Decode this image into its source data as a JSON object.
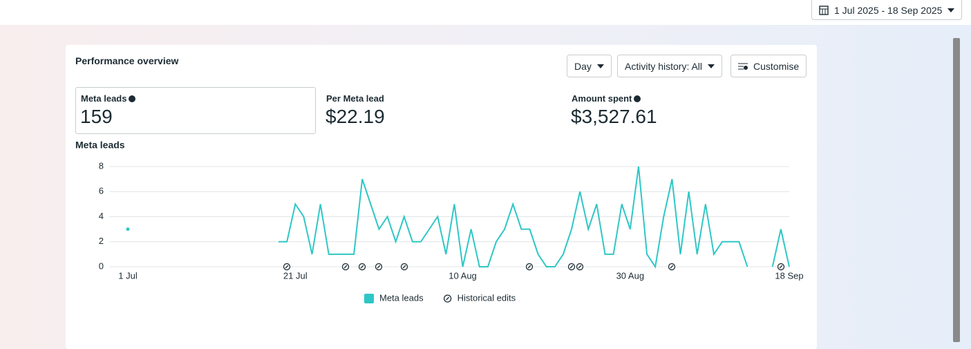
{
  "header": {
    "date_range": "1 Jul 2025 - 18 Sep 2025"
  },
  "panel": {
    "title": "Performance overview",
    "controls": {
      "period": "Day",
      "activity": "Activity history: All",
      "customise": "Customise"
    },
    "metrics": [
      {
        "label": "Meta leads",
        "value": "159"
      },
      {
        "label": "Per Meta lead",
        "value": "$22.19"
      },
      {
        "label": "Amount spent",
        "value": "$3,527.61"
      }
    ]
  },
  "chart_data": {
    "type": "line",
    "title": "Meta leads",
    "categories": [
      "1 Jul",
      null,
      null,
      null,
      null,
      null,
      null,
      null,
      null,
      null,
      null,
      null,
      null,
      null,
      null,
      null,
      null,
      null,
      null,
      null,
      "21 Jul",
      null,
      null,
      null,
      null,
      null,
      null,
      null,
      null,
      null,
      null,
      null,
      null,
      null,
      null,
      null,
      null,
      null,
      null,
      null,
      "10 Aug",
      null,
      null,
      null,
      null,
      null,
      null,
      null,
      null,
      null,
      null,
      null,
      null,
      null,
      null,
      null,
      null,
      null,
      null,
      null,
      "30 Aug",
      null,
      null,
      null,
      null,
      null,
      null,
      null,
      null,
      null,
      null,
      null,
      null,
      null,
      null,
      null,
      null,
      null,
      null,
      "18 Sep"
    ],
    "series": [
      {
        "name": "Meta leads",
        "color": "#2ec7c6",
        "values": [
          3,
          null,
          null,
          null,
          null,
          null,
          null,
          null,
          null,
          null,
          null,
          null,
          null,
          null,
          null,
          null,
          null,
          null,
          2,
          2,
          5,
          4,
          1,
          5,
          1,
          1,
          1,
          1,
          7,
          5,
          3,
          4,
          2,
          4,
          2,
          2,
          3,
          4,
          1,
          5,
          0,
          3,
          0,
          0,
          2,
          3,
          5,
          3,
          3,
          1,
          0,
          0,
          1,
          3,
          6,
          3,
          5,
          1,
          1,
          5,
          3,
          8,
          1,
          0,
          4,
          7,
          1,
          6,
          1,
          5,
          1,
          2,
          2,
          2,
          0,
          null,
          null,
          0,
          3,
          0
        ]
      }
    ],
    "ylim": [
      0,
      8
    ],
    "yticks": [
      0,
      2,
      4,
      6,
      8
    ],
    "grid": true,
    "legend": "bottom",
    "annotation_legend": "Historical edits"
  }
}
